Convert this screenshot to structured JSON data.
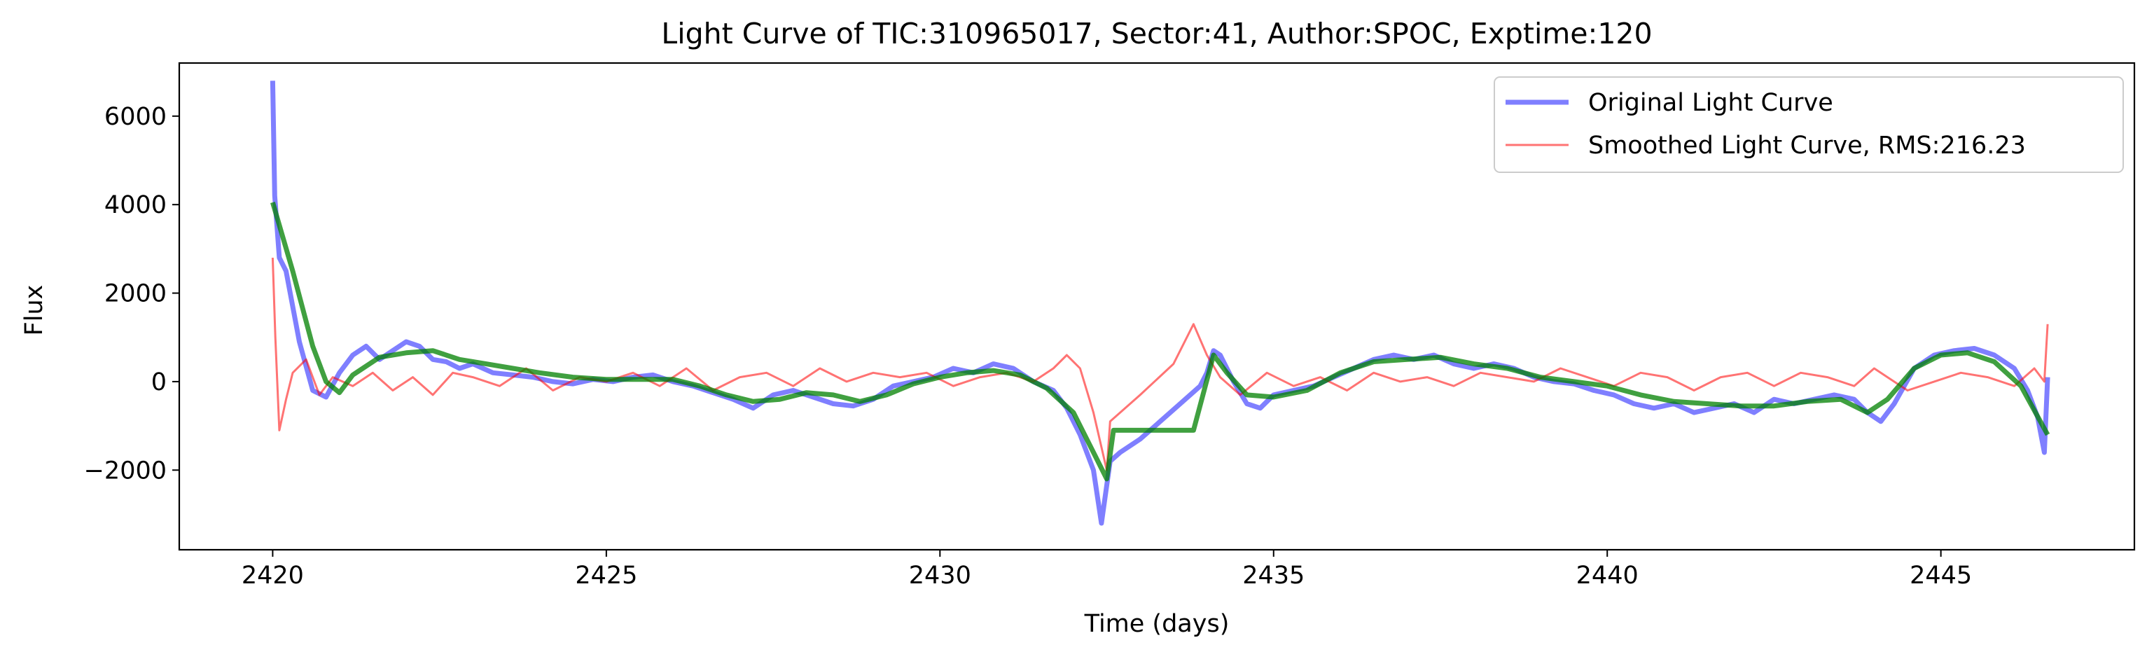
{
  "chart_data": {
    "type": "line",
    "title": "Light Curve of TIC:310965017, Sector:41, Author:SPOC, Exptime:120",
    "xlabel": "Time (days)",
    "ylabel": "Flux",
    "xlim": [
      2418.6,
      2447.9
    ],
    "ylim": [
      -3800,
      7200
    ],
    "xticks": [
      2420,
      2425,
      2430,
      2435,
      2440,
      2445
    ],
    "yticks": [
      -2000,
      0,
      2000,
      4000,
      6000
    ],
    "xtick_labels": [
      "2420",
      "2425",
      "2430",
      "2435",
      "2440",
      "2445"
    ],
    "ytick_labels": [
      "−2000",
      "0",
      "2000",
      "4000",
      "6000"
    ],
    "grid": false,
    "legend_position": "top-right",
    "series": [
      {
        "name": "Original Light Curve",
        "color": "#0000ff",
        "opacity": 0.5,
        "x": [
          2420.0,
          2420.03,
          2420.1,
          2420.2,
          2420.4,
          2420.6,
          2420.8,
          2421.0,
          2421.2,
          2421.4,
          2421.6,
          2421.8,
          2422.0,
          2422.2,
          2422.4,
          2422.6,
          2422.8,
          2423.0,
          2423.3,
          2423.6,
          2423.9,
          2424.2,
          2424.5,
          2424.8,
          2425.1,
          2425.4,
          2425.7,
          2426.0,
          2426.3,
          2426.6,
          2426.9,
          2427.2,
          2427.5,
          2427.8,
          2428.1,
          2428.4,
          2428.7,
          2429.0,
          2429.3,
          2429.6,
          2429.9,
          2430.2,
          2430.5,
          2430.8,
          2431.1,
          2431.4,
          2431.7,
          2431.9,
          2432.1,
          2432.3,
          2432.42,
          2432.55,
          2432.7,
          2433.0,
          2433.3,
          2433.6,
          2433.9,
          2434.0,
          2434.1,
          2434.2,
          2434.4,
          2434.6,
          2434.8,
          2435.0,
          2435.3,
          2435.6,
          2435.9,
          2436.2,
          2436.5,
          2436.8,
          2437.1,
          2437.4,
          2437.7,
          2438.0,
          2438.3,
          2438.6,
          2438.9,
          2439.2,
          2439.5,
          2439.8,
          2440.1,
          2440.4,
          2440.7,
          2441.0,
          2441.3,
          2441.6,
          2441.9,
          2442.2,
          2442.5,
          2442.8,
          2443.1,
          2443.4,
          2443.7,
          2443.9,
          2444.1,
          2444.3,
          2444.6,
          2444.9,
          2445.2,
          2445.5,
          2445.8,
          2446.1,
          2446.3,
          2446.45,
          2446.55,
          2446.6
        ],
        "y": [
          6800,
          4200,
          2800,
          2500,
          900,
          -200,
          -350,
          200,
          600,
          800,
          500,
          700,
          900,
          800,
          500,
          450,
          300,
          400,
          200,
          150,
          100,
          0,
          -50,
          50,
          0,
          100,
          150,
          0,
          -100,
          -250,
          -400,
          -600,
          -300,
          -200,
          -350,
          -500,
          -550,
          -400,
          -100,
          0,
          100,
          300,
          200,
          400,
          300,
          0,
          -200,
          -600,
          -1200,
          -2000,
          -3200,
          -1800,
          -1600,
          -1300,
          -900,
          -500,
          -100,
          200,
          700,
          600,
          0,
          -500,
          -600,
          -300,
          -200,
          -100,
          100,
          300,
          500,
          600,
          500,
          600,
          400,
          300,
          400,
          300,
          100,
          0,
          -50,
          -200,
          -300,
          -500,
          -600,
          -500,
          -700,
          -600,
          -500,
          -700,
          -400,
          -500,
          -400,
          -300,
          -400,
          -700,
          -900,
          -500,
          300,
          600,
          700,
          750,
          600,
          300,
          -200,
          -800,
          -1600,
          100
        ]
      },
      {
        "name": "Smoothed Light Curve, RMS:216.23",
        "color": "#ff0000",
        "opacity": 0.55,
        "x": [
          2420.0,
          2420.04,
          2420.1,
          2420.2,
          2420.3,
          2420.5,
          2420.7,
          2420.9,
          2421.2,
          2421.5,
          2421.8,
          2422.1,
          2422.4,
          2422.7,
          2423.0,
          2423.4,
          2423.8,
          2424.2,
          2424.6,
          2425.0,
          2425.4,
          2425.8,
          2426.2,
          2426.6,
          2427.0,
          2427.4,
          2427.8,
          2428.2,
          2428.6,
          2429.0,
          2429.4,
          2429.8,
          2430.2,
          2430.6,
          2431.0,
          2431.4,
          2431.7,
          2431.9,
          2432.1,
          2432.3,
          2432.5,
          2432.55,
          2433.0,
          2433.5,
          2433.8,
          2434.0,
          2434.2,
          2434.5,
          2434.9,
          2435.3,
          2435.7,
          2436.1,
          2436.5,
          2436.9,
          2437.3,
          2437.7,
          2438.1,
          2438.5,
          2438.9,
          2439.3,
          2439.7,
          2440.1,
          2440.5,
          2440.9,
          2441.3,
          2441.7,
          2442.1,
          2442.5,
          2442.9,
          2443.3,
          2443.7,
          2444.0,
          2444.2,
          2444.5,
          2444.9,
          2445.3,
          2445.7,
          2446.1,
          2446.4,
          2446.55,
          2446.6
        ],
        "y": [
          2800,
          1000,
          -1100,
          -400,
          200,
          500,
          -300,
          100,
          -100,
          200,
          -200,
          100,
          -300,
          200,
          100,
          -100,
          300,
          -200,
          100,
          0,
          200,
          -100,
          300,
          -200,
          100,
          200,
          -100,
          300,
          0,
          200,
          100,
          200,
          -100,
          100,
          200,
          0,
          300,
          600,
          300,
          -700,
          -2000,
          -900,
          -300,
          400,
          1300,
          600,
          100,
          -300,
          200,
          -100,
          100,
          -200,
          200,
          0,
          100,
          -100,
          200,
          100,
          0,
          300,
          100,
          -100,
          200,
          100,
          -200,
          100,
          200,
          -100,
          200,
          100,
          -100,
          300,
          100,
          -200,
          0,
          200,
          100,
          -100,
          300,
          0,
          1300
        ]
      },
      {
        "name": "",
        "color": "#008000",
        "opacity": 0.75,
        "x": [
          2420.0,
          2420.3,
          2420.6,
          2420.8,
          2421.0,
          2421.2,
          2421.6,
          2422.0,
          2422.4,
          2422.8,
          2423.2,
          2423.6,
          2424.0,
          2424.5,
          2425.0,
          2425.5,
          2426.0,
          2426.4,
          2426.8,
          2427.2,
          2427.6,
          2428.0,
          2428.4,
          2428.8,
          2429.2,
          2429.6,
          2430.0,
          2430.4,
          2430.8,
          2431.2,
          2431.6,
          2432.0,
          2432.3,
          2432.5,
          2432.6,
          2433.8,
          2434.1,
          2434.3,
          2434.6,
          2435.0,
          2435.5,
          2436.0,
          2436.5,
          2437.0,
          2437.5,
          2438.0,
          2438.5,
          2439.0,
          2439.5,
          2440.0,
          2440.5,
          2441.0,
          2441.5,
          2442.0,
          2442.5,
          2443.0,
          2443.5,
          2443.9,
          2444.2,
          2444.6,
          2445.0,
          2445.4,
          2445.8,
          2446.2,
          2446.6
        ],
        "y": [
          4050,
          2500,
          800,
          0,
          -250,
          150,
          550,
          650,
          700,
          500,
          400,
          300,
          200,
          100,
          50,
          50,
          50,
          -100,
          -300,
          -450,
          -400,
          -250,
          -300,
          -450,
          -300,
          -50,
          100,
          200,
          250,
          150,
          -150,
          -700,
          -1600,
          -2200,
          -1100,
          -1100,
          600,
          200,
          -300,
          -350,
          -200,
          200,
          450,
          500,
          550,
          400,
          300,
          100,
          0,
          -100,
          -300,
          -450,
          -500,
          -550,
          -550,
          -450,
          -400,
          -700,
          -400,
          300,
          600,
          650,
          450,
          -100,
          -1200
        ]
      }
    ],
    "legend": [
      {
        "label": "Original Light Curve",
        "color": "#0000ff"
      },
      {
        "label": "Smoothed Light Curve, RMS:216.23",
        "color": "#ff0000"
      }
    ]
  }
}
